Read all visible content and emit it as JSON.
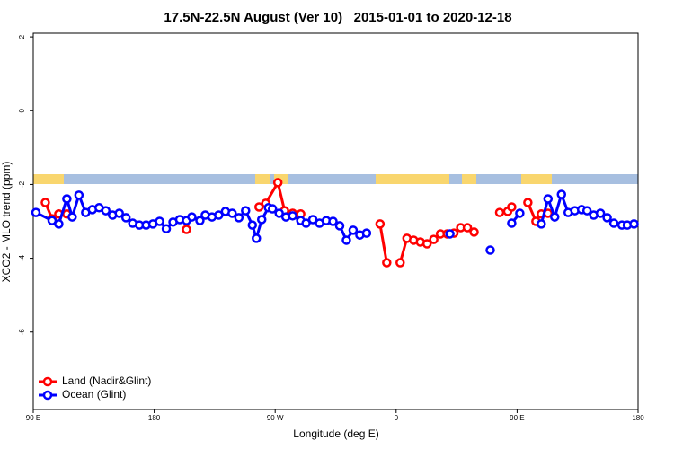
{
  "chart_data": {
    "type": "line",
    "title": "17.5N-22.5N August (Ver 10)   2015-01-01 to 2020-12-18",
    "x_label": "Longitude (deg E)",
    "y_label": "XCO2 - MLO trend (ppm)",
    "xlim": [
      90,
      540
    ],
    "ylim": [
      -8.1,
      2.1
    ],
    "xticks": [
      {
        "value": 90,
        "label": "90 E"
      },
      180,
      {
        "value": 270,
        "label": "90 W"
      },
      {
        "value": 360,
        "label": "0"
      },
      {
        "value": 450,
        "label": "90 E"
      },
      {
        "value": 540,
        "label": "180"
      }
    ],
    "yticks": [
      -6,
      -4,
      -2,
      0,
      2
    ],
    "legend": "bottomleft",
    "series": [
      {
        "name": "Land (Nadir&Glint)",
        "color": "#ff0000",
        "x": [
          99,
          104,
          109,
          115,
          null,
          204,
          null,
          258,
          263,
          272,
          277,
          283,
          289,
          null,
          348,
          353,
          null,
          363,
          368,
          373,
          378,
          383,
          388,
          393,
          398,
          403,
          408,
          413,
          418,
          null,
          437,
          443,
          446,
          null,
          458,
          464,
          468,
          473
        ],
        "values": [
          -2.49,
          -2.93,
          -2.8,
          -2.8,
          null,
          -3.22,
          null,
          -2.61,
          -2.51,
          -1.95,
          -2.71,
          -2.78,
          -2.8,
          null,
          -3.07,
          -4.12,
          null,
          -4.12,
          -3.46,
          -3.51,
          -3.56,
          -3.61,
          -3.49,
          -3.34,
          -3.34,
          -3.32,
          -3.17,
          -3.17,
          -3.29,
          null,
          -2.76,
          -2.73,
          -2.61,
          null,
          -2.49,
          -3.0,
          -2.8,
          -2.78
        ]
      },
      {
        "name": "Ocean (Glint)",
        "color": "#0000ff",
        "x": [
          92,
          104,
          109,
          115,
          119,
          124,
          129,
          134,
          139,
          144,
          149,
          154,
          159,
          164,
          169,
          174,
          179,
          184,
          189,
          194,
          199,
          204,
          208,
          214,
          218,
          223,
          228,
          233,
          238,
          243,
          248,
          253,
          256,
          260,
          265,
          268,
          273,
          278,
          283,
          289,
          293,
          298,
          303,
          308,
          313,
          318,
          323,
          328,
          333,
          338,
          null,
          400,
          null,
          430,
          null,
          446,
          452,
          null,
          468,
          473,
          478,
          483,
          488,
          493,
          498,
          502,
          507,
          512,
          517,
          522,
          528,
          532,
          537
        ],
        "values": [
          -2.76,
          -2.98,
          -3.07,
          -2.39,
          -2.88,
          -2.29,
          -2.76,
          -2.68,
          -2.63,
          -2.71,
          -2.83,
          -2.78,
          -2.9,
          -3.05,
          -3.1,
          -3.1,
          -3.07,
          -3.0,
          -3.2,
          -3.02,
          -2.95,
          -2.98,
          -2.88,
          -2.98,
          -2.83,
          -2.88,
          -2.83,
          -2.73,
          -2.78,
          -2.9,
          -2.71,
          -3.1,
          -3.46,
          -2.95,
          -2.63,
          -2.66,
          -2.78,
          -2.88,
          -2.85,
          -2.98,
          -3.05,
          -2.95,
          -3.05,
          -2.98,
          -3.0,
          -3.12,
          -3.51,
          -3.24,
          -3.37,
          -3.32,
          null,
          -3.34,
          null,
          -3.78,
          null,
          -3.05,
          -2.78,
          null,
          -3.07,
          -2.39,
          -2.88,
          -2.27,
          -2.76,
          -2.71,
          -2.68,
          -2.71,
          -2.83,
          -2.78,
          -2.9,
          -3.05,
          -3.1,
          -3.1,
          -3.07
        ]
      }
    ]
  }
}
